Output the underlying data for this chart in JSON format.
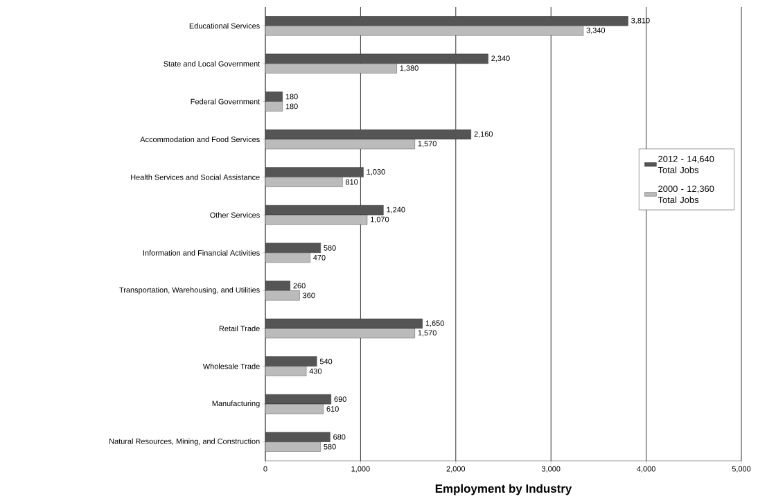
{
  "chart_data": {
    "type": "bar",
    "orientation": "horizontal",
    "xlabel": "Employment by Industry",
    "categories": [
      "Educational Services",
      "State and Local Government",
      "Federal Government",
      "Accommodation and Food Services",
      "Health Services and Social Assistance",
      "Other Services",
      "Information and Financial Activities",
      "Transportation, Warehousing, and Utilities",
      "Retail Trade",
      "Wholesale Trade",
      "Manufacturing",
      "Natural Resources, Mining, and Construction"
    ],
    "series": [
      {
        "name": "2012 - 14,640 Total Jobs",
        "color": "#555555",
        "values": [
          3810,
          2340,
          180,
          2160,
          1030,
          1240,
          580,
          260,
          1650,
          540,
          690,
          680
        ],
        "value_labels": [
          "3,810",
          "2,340",
          "180",
          "2,160",
          "1,030",
          "1,240",
          "580",
          "260",
          "1,650",
          "540",
          "690",
          "680"
        ]
      },
      {
        "name": "2000 - 12,360 Total Jobs",
        "color": "#bbbbbb",
        "values": [
          3340,
          1380,
          180,
          1570,
          810,
          1070,
          470,
          360,
          1570,
          430,
          610,
          580
        ],
        "value_labels": [
          "3,340",
          "1,380",
          "180",
          "1,570",
          "810",
          "1,070",
          "470",
          "360",
          "1,570",
          "430",
          "610",
          "580"
        ]
      }
    ],
    "xlim": [
      0,
      5000
    ],
    "xticks": [
      0,
      {
        "value": 1000,
        "label": "1,000"
      },
      {
        "value": 2000,
        "label": "2,000"
      },
      {
        "value": 3000,
        "label": "3,000"
      },
      {
        "value": 4000,
        "label": "4,000"
      },
      {
        "value": 5000,
        "label": "5,000"
      }
    ],
    "grid": "x",
    "legend": "right"
  }
}
